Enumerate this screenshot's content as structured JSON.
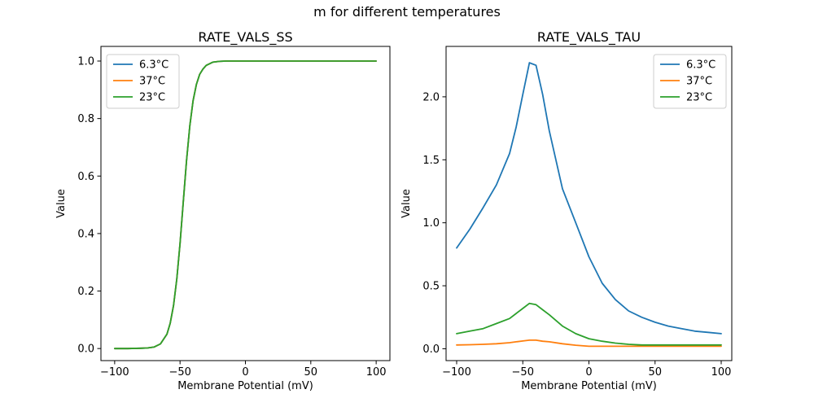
{
  "figure": {
    "suptitle": "m for different temperatures",
    "background": "#ffffff"
  },
  "chart_data": [
    {
      "type": "line",
      "title": "RATE_VALS_SS",
      "xlabel": "Membrane Potential (mV)",
      "ylabel": "Value",
      "xlim": [
        -110.5,
        110.5
      ],
      "ylim": [
        -0.042,
        1.051
      ],
      "xticks": [
        -100,
        -50,
        0,
        50,
        100
      ],
      "xtick_labels": [
        "−100",
        "−50",
        "0",
        "50",
        "100"
      ],
      "yticks": [
        0.0,
        0.2,
        0.4,
        0.6,
        0.8,
        1.0
      ],
      "ytick_labels": [
        "0.0",
        "0.2",
        "0.4",
        "0.6",
        "0.8",
        "1.0"
      ],
      "grid": false,
      "legend_position": "upper-left",
      "overlap_note": "All three temperature curves are identical sigmoids and overlap exactly; the green 23°C curve (drawn last) is the visible one.",
      "x": [
        -100,
        -90,
        -80,
        -75,
        -70,
        -65,
        -60,
        -57.5,
        -55,
        -52.5,
        -50,
        -47.5,
        -45,
        -42.5,
        -40,
        -37.5,
        -35,
        -32.5,
        -30,
        -25,
        -20,
        -15,
        -10,
        0,
        10,
        20,
        30,
        40,
        50,
        60,
        70,
        80,
        90,
        100
      ],
      "series": [
        {
          "name": "6.3°C",
          "color": "#1f77b4",
          "values": [
            0,
            0,
            0.001,
            0.002,
            0.005,
            0.016,
            0.05,
            0.088,
            0.15,
            0.242,
            0.366,
            0.512,
            0.655,
            0.775,
            0.862,
            0.919,
            0.954,
            0.972,
            0.985,
            0.996,
            0.999,
            1.0,
            1.0,
            1.0,
            1.0,
            1.0,
            1.0,
            1.0,
            1.0,
            1.0,
            1.0,
            1.0,
            1.0,
            1.0
          ]
        },
        {
          "name": "37°C",
          "color": "#ff7f0e",
          "values": [
            0,
            0,
            0.001,
            0.002,
            0.005,
            0.016,
            0.05,
            0.088,
            0.15,
            0.242,
            0.366,
            0.512,
            0.655,
            0.775,
            0.862,
            0.919,
            0.954,
            0.972,
            0.985,
            0.996,
            0.999,
            1.0,
            1.0,
            1.0,
            1.0,
            1.0,
            1.0,
            1.0,
            1.0,
            1.0,
            1.0,
            1.0,
            1.0,
            1.0
          ]
        },
        {
          "name": "23°C",
          "color": "#2ca02c",
          "values": [
            0,
            0,
            0.001,
            0.002,
            0.005,
            0.016,
            0.05,
            0.088,
            0.15,
            0.242,
            0.366,
            0.512,
            0.655,
            0.775,
            0.862,
            0.919,
            0.954,
            0.972,
            0.985,
            0.996,
            0.999,
            1.0,
            1.0,
            1.0,
            1.0,
            1.0,
            1.0,
            1.0,
            1.0,
            1.0,
            1.0,
            1.0,
            1.0,
            1.0
          ]
        }
      ]
    },
    {
      "type": "line",
      "title": "RATE_VALS_TAU",
      "xlabel": "Membrane Potential (mV)",
      "ylabel": "Value",
      "xlim": [
        -108,
        108
      ],
      "ylim": [
        -0.094,
        2.4
      ],
      "xticks": [
        -100,
        -50,
        0,
        50,
        100
      ],
      "xtick_labels": [
        "−100",
        "−50",
        "0",
        "50",
        "100"
      ],
      "yticks": [
        0.0,
        0.5,
        1.0,
        1.5,
        2.0
      ],
      "ytick_labels": [
        "0.0",
        "0.5",
        "1.0",
        "1.5",
        "2.0"
      ],
      "grid": false,
      "legend_position": "upper-right",
      "overlap_note": "Blue 6.3°C peaks at ≈2.28 near −43 mV; green 23°C peaks at ≈0.36; orange 37°C peaks at ≈0.07.",
      "x": [
        -100,
        -90,
        -80,
        -70,
        -60,
        -55,
        -50,
        -45,
        -40,
        -35,
        -30,
        -20,
        -10,
        0,
        10,
        20,
        30,
        40,
        50,
        60,
        70,
        80,
        90,
        100
      ],
      "series": [
        {
          "name": "6.3°C",
          "color": "#1f77b4",
          "values": [
            0.8,
            0.95,
            1.12,
            1.3,
            1.55,
            1.76,
            2.02,
            2.27,
            2.25,
            2.02,
            1.73,
            1.27,
            1.0,
            0.73,
            0.52,
            0.39,
            0.3,
            0.25,
            0.21,
            0.18,
            0.16,
            0.14,
            0.13,
            0.12
          ]
        },
        {
          "name": "37°C",
          "color": "#ff7f0e",
          "values": [
            0.03,
            0.032,
            0.035,
            0.04,
            0.048,
            0.055,
            0.062,
            0.068,
            0.068,
            0.06,
            0.055,
            0.04,
            0.028,
            0.02,
            0.02,
            0.02,
            0.02,
            0.02,
            0.02,
            0.02,
            0.02,
            0.02,
            0.02,
            0.02
          ]
        },
        {
          "name": "23°C",
          "color": "#2ca02c",
          "values": [
            0.12,
            0.14,
            0.16,
            0.2,
            0.24,
            0.28,
            0.32,
            0.36,
            0.35,
            0.31,
            0.27,
            0.18,
            0.12,
            0.08,
            0.06,
            0.045,
            0.035,
            0.03,
            0.03,
            0.03,
            0.03,
            0.03,
            0.03,
            0.03
          ]
        }
      ]
    }
  ]
}
